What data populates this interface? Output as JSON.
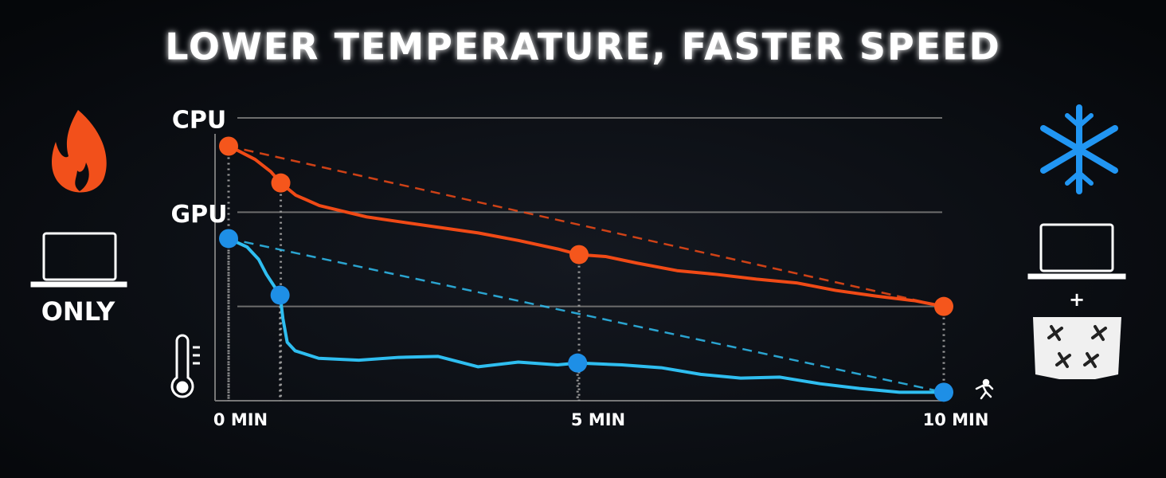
{
  "title": "LOWER TEMPERATURE, FASTER SPEED",
  "side_labels": {
    "left": "ONLY",
    "right": "+"
  },
  "chart_data": {
    "type": "line",
    "xlim": [
      0,
      10
    ],
    "xticks": [
      {
        "value": 0,
        "label": "0 MIN"
      },
      {
        "value": 5,
        "label": "5 MIN"
      },
      {
        "value": 10,
        "label": "10 MIN"
      }
    ],
    "ylim": [
      0,
      3
    ],
    "yticks": [
      {
        "value": 3,
        "label": "CPU"
      },
      {
        "value": 2,
        "label": "GPU"
      }
    ],
    "grid_values": [
      1,
      2,
      3
    ],
    "trend_lines": true,
    "series": [
      {
        "name": "CPU",
        "color": "#f04a16",
        "marker_color": "#f5561c",
        "markers": [
          0,
          4,
          14,
          24
        ],
        "x": [
          0,
          0.14,
          0.37,
          0.59,
          0.73,
          0.94,
          1.27,
          1.6,
          1.93,
          2.38,
          2.93,
          3.49,
          4.05,
          4.6,
          4.9,
          5.27,
          5.71,
          6.27,
          6.82,
          7.38,
          7.94,
          8.49,
          9.05,
          9.6,
          10
        ],
        "values": [
          2.7,
          2.65,
          2.56,
          2.43,
          2.31,
          2.18,
          2.07,
          2.01,
          1.95,
          1.9,
          1.84,
          1.78,
          1.7,
          1.61,
          1.55,
          1.53,
          1.46,
          1.38,
          1.34,
          1.29,
          1.25,
          1.17,
          1.11,
          1.06,
          1.0
        ]
      },
      {
        "name": "GPU",
        "color": "#2fbef0",
        "marker_color": "#1e8fe6",
        "markers": [
          0,
          4,
          15,
          24
        ],
        "x": [
          0,
          0.26,
          0.42,
          0.53,
          0.72,
          0.76,
          0.82,
          0.93,
          1.26,
          1.82,
          2.38,
          2.93,
          3.49,
          4.05,
          4.6,
          4.88,
          5.5,
          6.05,
          6.6,
          7.16,
          7.71,
          8.27,
          8.82,
          9.38,
          10
        ],
        "values": [
          1.72,
          1.63,
          1.5,
          1.34,
          1.12,
          0.87,
          0.62,
          0.53,
          0.45,
          0.43,
          0.46,
          0.47,
          0.36,
          0.41,
          0.38,
          0.4,
          0.38,
          0.35,
          0.28,
          0.24,
          0.25,
          0.18,
          0.13,
          0.09,
          0.09
        ]
      }
    ]
  }
}
